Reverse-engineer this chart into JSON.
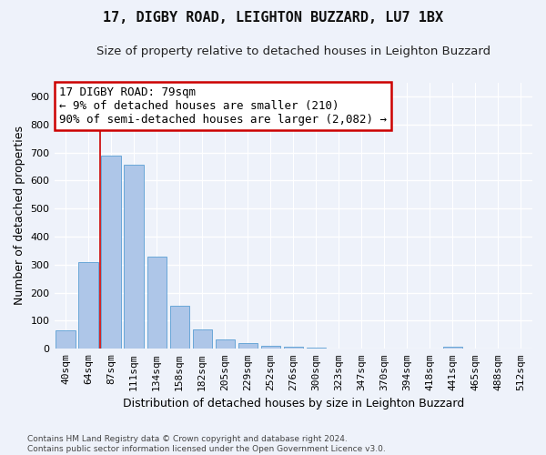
{
  "title": "17, DIGBY ROAD, LEIGHTON BUZZARD, LU7 1BX",
  "subtitle": "Size of property relative to detached houses in Leighton Buzzard",
  "xlabel": "Distribution of detached houses by size in Leighton Buzzard",
  "ylabel": "Number of detached properties",
  "categories": [
    "40sqm",
    "64sqm",
    "87sqm",
    "111sqm",
    "134sqm",
    "158sqm",
    "182sqm",
    "205sqm",
    "229sqm",
    "252sqm",
    "276sqm",
    "300sqm",
    "323sqm",
    "347sqm",
    "370sqm",
    "394sqm",
    "418sqm",
    "441sqm",
    "465sqm",
    "488sqm",
    "512sqm"
  ],
  "values": [
    65,
    310,
    688,
    655,
    330,
    152,
    68,
    32,
    20,
    12,
    7,
    3,
    2,
    1,
    0,
    0,
    0,
    8,
    0,
    0,
    0
  ],
  "bar_color": "#aec6e8",
  "bar_edge_color": "#5a9fd4",
  "annotation_text": "17 DIGBY ROAD: 79sqm\n← 9% of detached houses are smaller (210)\n90% of semi-detached houses are larger (2,082) →",
  "red_line_bin_index": 2,
  "ylim": [
    0,
    950
  ],
  "yticks": [
    0,
    100,
    200,
    300,
    400,
    500,
    600,
    700,
    800,
    900
  ],
  "footnote": "Contains HM Land Registry data © Crown copyright and database right 2024.\nContains public sector information licensed under the Open Government Licence v3.0.",
  "bg_color": "#eef2fa",
  "grid_color": "#ffffff",
  "annotation_box_color": "#ffffff",
  "annotation_box_edge_color": "#cc0000",
  "title_fontsize": 11,
  "subtitle_fontsize": 9.5,
  "axis_label_fontsize": 9,
  "tick_fontsize": 8,
  "annotation_fontsize": 9
}
